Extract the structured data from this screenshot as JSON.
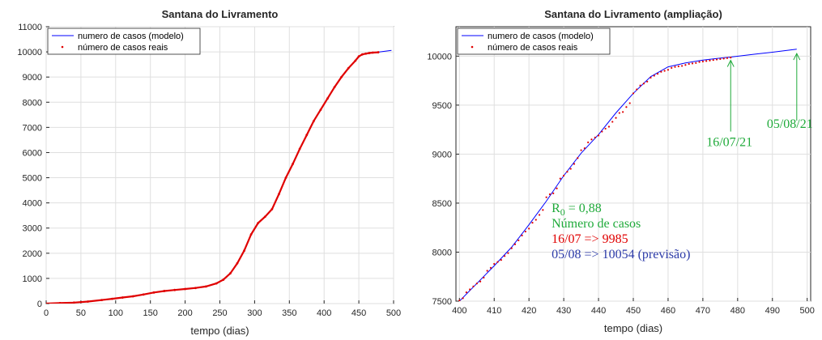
{
  "chart_data": [
    {
      "type": "line",
      "title": "Santana do Livramento",
      "xlabel": "tempo (dias)",
      "ylabel": "",
      "xlim": [
        0,
        500
      ],
      "ylim": [
        0,
        11000
      ],
      "xticks": [
        0,
        50,
        100,
        150,
        200,
        250,
        300,
        350,
        400,
        450,
        500
      ],
      "yticks": [
        0,
        1000,
        2000,
        3000,
        4000,
        5000,
        6000,
        7000,
        8000,
        9000,
        10000,
        11000
      ],
      "grid": true,
      "legend": {
        "placement": "top-left",
        "entries": [
          "numero de casos (modelo)",
          "número de casos reais"
        ]
      },
      "series": [
        {
          "name": "numero de casos (modelo)",
          "style": "line",
          "color": "#0000ff",
          "x": [
            0,
            20,
            40,
            60,
            80,
            95,
            110,
            125,
            140,
            155,
            170,
            185,
            200,
            215,
            230,
            245,
            255,
            265,
            275,
            285,
            295,
            305,
            315,
            325,
            335,
            345,
            355,
            365,
            375,
            385,
            395,
            405,
            415,
            425,
            435,
            445,
            450,
            455,
            460,
            465,
            470,
            478,
            497
          ],
          "y": [
            0,
            20,
            40,
            80,
            140,
            190,
            240,
            290,
            360,
            440,
            500,
            540,
            580,
            620,
            680,
            800,
            950,
            1200,
            1600,
            2100,
            2750,
            3200,
            3450,
            3750,
            4350,
            5000,
            5550,
            6150,
            6700,
            7250,
            7700,
            8150,
            8600,
            9000,
            9350,
            9650,
            9820,
            9900,
            9930,
            9955,
            9970,
            9990,
            10060
          ]
        },
        {
          "name": "número de casos reais",
          "style": "dots",
          "color": "#e00000",
          "x": [
            0,
            20,
            40,
            60,
            80,
            95,
            110,
            125,
            140,
            155,
            170,
            185,
            200,
            215,
            230,
            245,
            255,
            265,
            275,
            285,
            295,
            305,
            315,
            325,
            335,
            345,
            355,
            365,
            375,
            385,
            395,
            405,
            415,
            425,
            435,
            445,
            450,
            455,
            460,
            465,
            470,
            478
          ],
          "y": [
            0,
            20,
            40,
            80,
            140,
            190,
            240,
            290,
            360,
            440,
            500,
            540,
            580,
            620,
            680,
            800,
            950,
            1200,
            1600,
            2100,
            2750,
            3200,
            3450,
            3750,
            4350,
            5000,
            5550,
            6150,
            6700,
            7250,
            7700,
            8150,
            8600,
            9000,
            9350,
            9650,
            9820,
            9900,
            9930,
            9955,
            9970,
            9985
          ]
        }
      ]
    },
    {
      "type": "line",
      "title": "Santana do Livramento (ampliação)",
      "xlabel": "tempo (dias)",
      "ylabel": "",
      "xlim": [
        399,
        501
      ],
      "ylim": [
        7500,
        10300
      ],
      "xticks": [
        400,
        410,
        420,
        430,
        440,
        450,
        460,
        470,
        480,
        490,
        500
      ],
      "yticks": [
        7500,
        8000,
        8500,
        9000,
        9500,
        10000
      ],
      "grid": true,
      "legend": {
        "placement": "top-left",
        "entries": [
          "numero de casos (modelo)",
          "número de casos reais"
        ]
      },
      "series": [
        {
          "name": "numero de casos (modelo)",
          "style": "line",
          "color": "#0000ff",
          "x": [
            400,
            405,
            410,
            415,
            420,
            425,
            430,
            435,
            440,
            445,
            450,
            455,
            460,
            465,
            470,
            475,
            478,
            485,
            490,
            497
          ],
          "y": [
            7500,
            7680,
            7860,
            8050,
            8280,
            8520,
            8780,
            9010,
            9200,
            9420,
            9620,
            9790,
            9890,
            9930,
            9960,
            9980,
            9990,
            10020,
            10040,
            10070
          ]
        },
        {
          "name": "número de casos reais",
          "style": "dots",
          "color": "#e00000",
          "x": [
            400,
            401,
            402,
            403,
            404,
            405,
            406,
            407,
            408,
            409,
            410,
            411,
            412,
            413,
            414,
            415,
            416,
            417,
            418,
            419,
            420,
            421,
            422,
            423,
            424,
            425,
            426,
            427,
            428,
            429,
            430,
            431,
            432,
            433,
            434,
            435,
            436,
            437,
            438,
            439,
            440,
            441,
            442,
            443,
            444,
            445,
            446,
            447,
            448,
            449,
            450,
            451,
            452,
            453,
            454,
            455,
            456,
            457,
            458,
            459,
            460,
            461,
            462,
            463,
            464,
            465,
            466,
            467,
            468,
            469,
            470,
            471,
            472,
            473,
            474,
            475,
            476,
            477,
            478
          ],
          "y": [
            7505,
            7530,
            7590,
            7620,
            7650,
            7680,
            7700,
            7740,
            7810,
            7840,
            7880,
            7900,
            7920,
            7960,
            7990,
            8040,
            8080,
            8120,
            8170,
            8210,
            8240,
            8300,
            8330,
            8380,
            8430,
            8560,
            8590,
            8600,
            8650,
            8750,
            8780,
            8820,
            8850,
            8900,
            8960,
            9040,
            9060,
            9120,
            9150,
            9170,
            9190,
            9230,
            9260,
            9280,
            9330,
            9370,
            9420,
            9430,
            9480,
            9520,
            9620,
            9660,
            9700,
            9720,
            9740,
            9780,
            9800,
            9820,
            9840,
            9850,
            9860,
            9880,
            9890,
            9895,
            9900,
            9910,
            9920,
            9925,
            9930,
            9940,
            9945,
            9950,
            9955,
            9960,
            9965,
            9970,
            9975,
            9980,
            9985
          ]
        }
      ],
      "annotations": {
        "arrows": [
          {
            "label": "16/07/21",
            "x": 478,
            "y": 9990,
            "color": "#1faa3a"
          },
          {
            "label": "05/08/21",
            "x": 497,
            "y": 10060,
            "color": "#1faa3a"
          }
        ],
        "text_lines": [
          {
            "text": "R",
            "sub": "0",
            "rest": " = 0,88",
            "color": "#1faa3a"
          },
          {
            "text": "Número de casos",
            "color": "#1faa3a"
          },
          {
            "text": "16/07 => 9985",
            "color": "#e00000"
          },
          {
            "text": "05/08 => 10054 (previsão)",
            "color": "#2b3aa8"
          }
        ]
      }
    }
  ]
}
